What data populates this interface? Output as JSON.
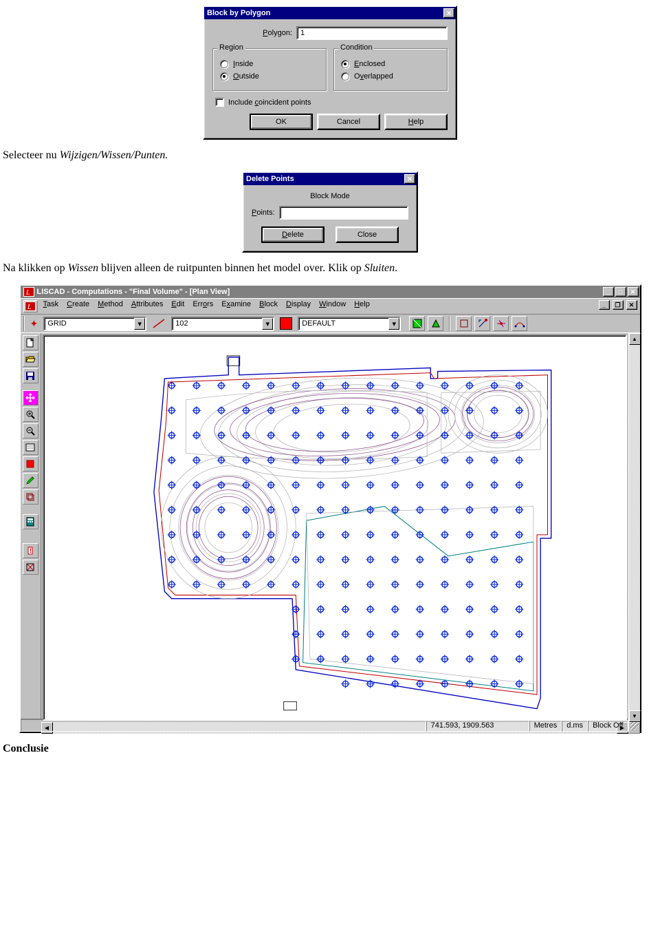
{
  "dialog1": {
    "title": "Block by Polygon",
    "polygon_prefix": "P",
    "polygon_label_rest": "olygon:",
    "polygon_value": "1",
    "region": {
      "title": "Region",
      "inside_pre": "",
      "inside_u": "I",
      "inside_post": "nside",
      "outside_pre": "",
      "outside_u": "O",
      "outside_post": "utside",
      "selected": "outside"
    },
    "condition": {
      "title": "Condition",
      "enclosed_pre": "",
      "enclosed_u": "E",
      "enclosed_post": "nclosed",
      "overlapped_pre": "O",
      "overlapped_u": "v",
      "overlapped_post": "erlapped",
      "selected": "enclosed"
    },
    "coincident_pre": "Include ",
    "coincident_u": "c",
    "coincident_post": "oincident points",
    "buttons": {
      "ok": "OK",
      "cancel": "Cancel",
      "help_u": "H",
      "help_post": "elp"
    }
  },
  "text1": {
    "prefix": "Selecteer nu ",
    "italic": "Wijzigen/Wissen/Punten.",
    "suffix": ""
  },
  "dialog2": {
    "title": "Delete Points",
    "mode": "Block Mode",
    "points_u": "P",
    "points_post": "oints:",
    "points_value": "",
    "buttons": {
      "delete_u": "D",
      "delete_post": "elete",
      "close": "Close"
    }
  },
  "text2": {
    "prefix": "Na klikken op ",
    "it1": "Wissen",
    "mid": " blijven alleen de ruitpunten binnen het model over. Klik op ",
    "it2": "Sluiten",
    "end": "."
  },
  "app": {
    "title": "LISCAD - Computations - \"Final Volume\" - [Plan View]",
    "menus": [
      {
        "u": "T",
        "rest": "ask"
      },
      {
        "u": "C",
        "rest": "reate"
      },
      {
        "u": "M",
        "rest": "ethod"
      },
      {
        "u": "A",
        "rest": "ttributes"
      },
      {
        "u": "E",
        "rest": "dit"
      },
      {
        "u": "",
        "rest": "Err",
        "u2": "o",
        "rest2": "rs"
      },
      {
        "u": "",
        "rest": "E",
        "u2": "x",
        "rest2": "amine"
      },
      {
        "u": "B",
        "rest": "lock"
      },
      {
        "u": "D",
        "rest": "isplay"
      },
      {
        "u": "W",
        "rest": "indow"
      },
      {
        "u": "H",
        "rest": "elp"
      }
    ],
    "combo1": "GRID",
    "combo2": "102",
    "combo3": "DEFAULT",
    "status": {
      "coords": "741.593, 1909.563",
      "units": "Metres",
      "angle": "d.ms",
      "block": "Block Off"
    },
    "colors": {
      "survey_point": "#1030d8",
      "contour_minor": "#b0b0b0",
      "contour_major": "#8a4a8a",
      "boundary1": "#c00000",
      "boundary2": "#008080",
      "boundary3": "#0000c0",
      "red_square": "#ff0000",
      "magenta": "#ff00ff"
    }
  },
  "conclusion": "Conclusie"
}
